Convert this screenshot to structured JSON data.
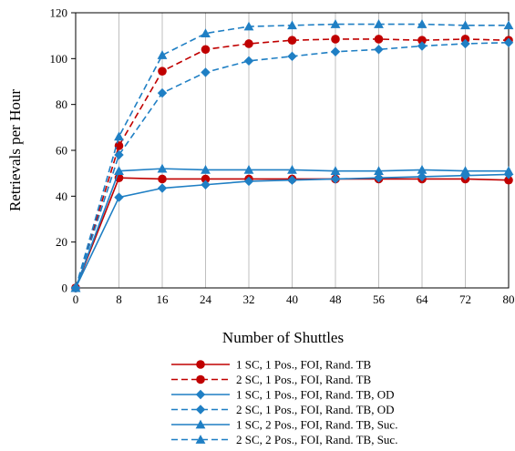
{
  "chart_data": {
    "type": "line",
    "title": "",
    "xlabel": "Number of Shuttles",
    "ylabel": "Retrievals per Hour",
    "x": [
      0,
      8,
      16,
      24,
      32,
      40,
      48,
      56,
      64,
      72,
      80
    ],
    "xlim": [
      0,
      80
    ],
    "ylim": [
      0,
      120
    ],
    "yticks": [
      0,
      20,
      40,
      60,
      80,
      100,
      120
    ],
    "grid": "vertical",
    "legend_position": "bottom",
    "series": [
      {
        "name": "1 SC, 1 Pos., FOI, Rand. TB",
        "color": "#c00000",
        "dash": "solid",
        "marker": "circle",
        "values": [
          0,
          48,
          47.5,
          47.5,
          47.5,
          47.5,
          47.5,
          47.5,
          47.5,
          47.5,
          47
        ]
      },
      {
        "name": "2 SC, 1 Pos., FOI, Rand. TB",
        "color": "#c00000",
        "dash": "dashed",
        "marker": "circle",
        "values": [
          0,
          62,
          94.5,
          104,
          106.5,
          108,
          108.5,
          108.5,
          108,
          108.5,
          108
        ]
      },
      {
        "name": "1 SC, 1 Pos., FOI, Rand. TB, OD",
        "color": "#1f7fc4",
        "dash": "solid",
        "marker": "diamond",
        "values": [
          0,
          39.5,
          43.5,
          45,
          46.5,
          47,
          47.5,
          48,
          48.5,
          49,
          49.5
        ]
      },
      {
        "name": "2 SC, 1 Pos., FOI, Rand. TB, OD",
        "color": "#1f7fc4",
        "dash": "dashed",
        "marker": "diamond",
        "values": [
          0,
          58,
          85,
          94,
          99,
          101,
          103,
          104,
          105.5,
          106.5,
          107
        ]
      },
      {
        "name": "1 SC, 2 Pos., FOI, Rand. TB, Suc.",
        "color": "#1f7fc4",
        "dash": "solid",
        "marker": "triangle",
        "values": [
          0,
          51,
          52,
          51.5,
          51.5,
          51.5,
          51,
          51,
          51.5,
          51,
          51
        ]
      },
      {
        "name": "2 SC, 2 Pos., FOI, Rand. TB, Suc.",
        "color": "#1f7fc4",
        "dash": "dashed",
        "marker": "triangle",
        "values": [
          0,
          66,
          101.5,
          111,
          114,
          114.5,
          115,
          115,
          115,
          114.5,
          114.5
        ]
      }
    ]
  }
}
